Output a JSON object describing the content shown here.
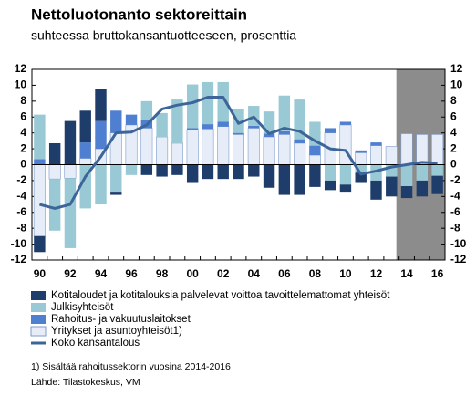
{
  "chart_data": {
    "type": "bar",
    "title": "Nettoluotonanto sektoreittain",
    "subtitle": "suhteessa bruttokansantuotteeseen, prosenttia",
    "footnote": "1) Sisältää rahoitussektorin vuosina 2014-2016",
    "source": "Lähde: Tilastokeskus, VM",
    "categories": [
      "90",
      null,
      "92",
      null,
      "94",
      null,
      "96",
      null,
      "98",
      null,
      "00",
      null,
      "02",
      null,
      "04",
      null,
      "06",
      null,
      "08",
      null,
      "10",
      null,
      "12",
      null,
      "14",
      null,
      "16"
    ],
    "series": [
      {
        "name": "Kotitaloudet ja kotitalouksia palvelevat voittoa tavoittelemattomat yhteisöt",
        "type": "bar",
        "color": "#1f3d6b",
        "values": [
          -2,
          2.7,
          5.5,
          4,
          4,
          -0.4,
          0,
          -1.3,
          -1.5,
          -1.3,
          -2.3,
          -1.8,
          -1.8,
          -1.8,
          -1.5,
          -2.9,
          -3.8,
          -3.8,
          -2.8,
          -1.2,
          -0.9,
          -1.3,
          -2.4,
          -2.5,
          -1.5,
          -2,
          -2.3
        ]
      },
      {
        "name": "Julkisyhteisöt",
        "type": "bar",
        "color": "#99c9d4",
        "values": [
          5.6,
          -6.5,
          -8.8,
          -5.5,
          -5,
          -3.4,
          -1.3,
          2.4,
          3,
          5.5,
          5.5,
          5.3,
          5,
          3,
          2.5,
          2.8,
          4.5,
          5,
          3,
          -2,
          -2.5,
          -1,
          -2,
          -1.5,
          -2.7,
          -2,
          -1.4
        ]
      },
      {
        "name": "Rahoitus- ja vakuutuslaitokset",
        "type": "bar",
        "color": "#4f7fd0",
        "values": [
          0.7,
          0,
          0,
          2,
          3.5,
          2.8,
          1.3,
          1,
          0,
          0,
          0.2,
          0.6,
          0.6,
          0.2,
          0.3,
          0.4,
          0.4,
          0.5,
          1.2,
          0.6,
          0.4,
          0.3,
          0.4,
          0,
          0,
          0,
          0
        ]
      },
      {
        "name": "Yritykset ja asuntoyhteisöt1)",
        "type": "bar",
        "color": "#e6edf8",
        "values": [
          -9,
          -1.8,
          -1.7,
          0.8,
          2,
          4,
          5,
          4.6,
          3.5,
          2.7,
          4.4,
          4.5,
          4.8,
          3.8,
          4.6,
          3.5,
          3.8,
          2.7,
          1.2,
          4,
          5,
          1.5,
          2.4,
          2.3,
          3.9,
          3.8,
          3.8
        ]
      },
      {
        "name": "Koko kansantalous",
        "type": "line",
        "color": "#3d6599",
        "values": [
          -5,
          -5.5,
          -5,
          -1.5,
          1,
          4,
          4.1,
          5,
          7,
          7.5,
          7.8,
          8.5,
          8.5,
          5.2,
          6,
          3.9,
          4.6,
          4.2,
          3,
          2,
          1.8,
          -1.2,
          -0.8,
          -0.3,
          0,
          0.3,
          0.2
        ]
      }
    ],
    "ylim": [
      -12,
      12
    ],
    "yticks": [
      -12,
      -10,
      -8,
      -6,
      -4,
      -2,
      0,
      2,
      4,
      6,
      8,
      10,
      12
    ],
    "y2lim": [
      -12,
      12
    ],
    "y2ticks": [
      -12,
      -10,
      -8,
      -6,
      -4,
      -2,
      0,
      2,
      4,
      6,
      8,
      10,
      12
    ]
  }
}
